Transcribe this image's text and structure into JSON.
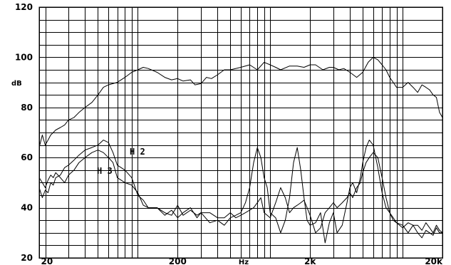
{
  "chart_data": {
    "type": "line",
    "title": "",
    "xlabel": "Hz",
    "ylabel": "dB",
    "x_scale": "log",
    "xlim": [
      18,
      20000
    ],
    "ylim": [
      20,
      120
    ],
    "y_ticks": [
      20,
      40,
      60,
      80,
      100,
      120
    ],
    "y_tick_labels": [
      "20",
      "40",
      "60",
      "80",
      "100",
      "120"
    ],
    "x_tick_labels": [
      {
        "value": 20,
        "label": "20"
      },
      {
        "value": 200,
        "label": "200"
      },
      {
        "value": 2000,
        "label": "2k"
      },
      {
        "value": 20000,
        "label": "20k"
      }
    ],
    "grid": true,
    "series": [
      {
        "name": "",
        "x": [
          18,
          19,
          20,
          21,
          22,
          23,
          24,
          26,
          28,
          30,
          33,
          36,
          40,
          45,
          50,
          55,
          60,
          70,
          80,
          90,
          100,
          110,
          120,
          140,
          160,
          180,
          200,
          220,
          250,
          270,
          300,
          330,
          360,
          400,
          450,
          500,
          600,
          700,
          800,
          900,
          1000,
          1100,
          1200,
          1400,
          1600,
          1800,
          2000,
          2200,
          2500,
          2800,
          3000,
          3300,
          3600,
          4000,
          4500,
          5000,
          5500,
          6000,
          6500,
          7000,
          7500,
          8000,
          8500,
          9000,
          10000,
          11000,
          12000,
          13000,
          14000,
          15000,
          16000,
          17000,
          18000,
          19000,
          20000
        ],
        "y": [
          64,
          69,
          65,
          67,
          69,
          70,
          71,
          72,
          73,
          75,
          76,
          78,
          80,
          82,
          85,
          88,
          89,
          90,
          92,
          94,
          95,
          96,
          95.5,
          94,
          92,
          91,
          91.5,
          90.5,
          91,
          89,
          89.5,
          92,
          91.5,
          93,
          95,
          95,
          96,
          97,
          95,
          98,
          97,
          96,
          95,
          96.5,
          96.5,
          96,
          97,
          97,
          95,
          96,
          96,
          95,
          95.5,
          94,
          92,
          94,
          98,
          100,
          99,
          97,
          95,
          92,
          90,
          88,
          88,
          90,
          88,
          86,
          89,
          88,
          87,
          85,
          84,
          78,
          76
        ]
      },
      {
        "name": "H 2",
        "x": [
          18,
          19,
          20,
          21,
          22,
          23,
          24,
          26,
          28,
          30,
          33,
          36,
          40,
          45,
          50,
          55,
          60,
          65,
          70,
          80,
          90,
          100,
          110,
          120,
          140,
          160,
          180,
          200,
          220,
          250,
          280,
          300,
          350,
          400,
          450,
          500,
          550,
          600,
          650,
          700,
          750,
          800,
          850,
          900,
          950,
          1000,
          1100,
          1200,
          1300,
          1400,
          1500,
          1600,
          1700,
          1800,
          1900,
          2000,
          2200,
          2400,
          2600,
          2800,
          3000,
          3200,
          3500,
          3800,
          4000,
          4200,
          4500,
          4800,
          5000,
          5300,
          5600,
          6000,
          6500,
          7000,
          7500,
          8000,
          8500,
          9000,
          10000,
          11000,
          12000,
          13000,
          14000,
          15000,
          16000,
          17000,
          18000,
          19000,
          20000
        ],
        "y": [
          48,
          44,
          47,
          46,
          50,
          49,
          52,
          53,
          56,
          57,
          59,
          61,
          63,
          64,
          65,
          67,
          66,
          62,
          57,
          55,
          52,
          45,
          43,
          40,
          40,
          37,
          39,
          36,
          38,
          40,
          36,
          38,
          34,
          35,
          33,
          36,
          37,
          38,
          42,
          48,
          58,
          64,
          60,
          52,
          48,
          38,
          36,
          30,
          35,
          44,
          58,
          64,
          55,
          44,
          35,
          33,
          34,
          38,
          26,
          34,
          38,
          30,
          33,
          42,
          48,
          50,
          46,
          52,
          58,
          64,
          67,
          65,
          56,
          46,
          40,
          38,
          36,
          34,
          33,
          30,
          33,
          30,
          28,
          31,
          30,
          29,
          32,
          30,
          30
        ]
      },
      {
        "name": "H 3",
        "x": [
          18,
          19,
          20,
          21,
          22,
          23,
          24,
          26,
          28,
          30,
          33,
          36,
          40,
          45,
          50,
          55,
          60,
          65,
          70,
          80,
          90,
          100,
          110,
          120,
          140,
          160,
          180,
          200,
          220,
          250,
          280,
          300,
          350,
          400,
          450,
          500,
          550,
          600,
          650,
          700,
          750,
          800,
          850,
          900,
          950,
          1000,
          1100,
          1200,
          1300,
          1400,
          1500,
          1600,
          1700,
          1800,
          1900,
          2000,
          2200,
          2400,
          2600,
          2800,
          3000,
          3200,
          3500,
          3800,
          4000,
          4200,
          4500,
          4800,
          5000,
          5300,
          5600,
          6000,
          6500,
          7000,
          7500,
          8000,
          8500,
          9000,
          10000,
          11000,
          12000,
          13000,
          14000,
          15000,
          16000,
          17000,
          18000,
          19000,
          20000
        ],
        "y": [
          52,
          50,
          48,
          51,
          53,
          52,
          54,
          52,
          50,
          53,
          55,
          58,
          60,
          62,
          63,
          62,
          60,
          58,
          52,
          50,
          49,
          46,
          41,
          40,
          40,
          38,
          37,
          41,
          37,
          39,
          37,
          38,
          38,
          36,
          36,
          38,
          36,
          37,
          38,
          39,
          40,
          42,
          44,
          38,
          37,
          36,
          42,
          48,
          44,
          38,
          40,
          41,
          42,
          43,
          40,
          37,
          30,
          32,
          38,
          40,
          42,
          40,
          42,
          44,
          46,
          44,
          48,
          50,
          54,
          58,
          60,
          62,
          60,
          52,
          44,
          38,
          35,
          34,
          32,
          34,
          33,
          33,
          31,
          34,
          32,
          30,
          33,
          31,
          30
        ]
      }
    ],
    "series_labels": [
      "H 2",
      "H 3"
    ]
  }
}
